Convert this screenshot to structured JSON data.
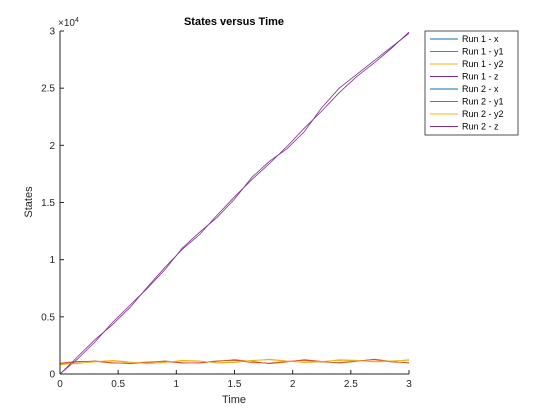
{
  "chart_data": {
    "type": "line",
    "title": "States versus Time",
    "xlabel": "Time",
    "ylabel": "States",
    "xlim": [
      0,
      3
    ],
    "ylim": [
      0,
      30000
    ],
    "xticks": [
      "0",
      "0.5",
      "1",
      "1.5",
      "2",
      "2.5",
      "3"
    ],
    "yticks": [
      "0",
      "0.5",
      "1",
      "1.5",
      "2",
      "2.5",
      "3"
    ],
    "exponent_label": "×10",
    "exponent_power": "4",
    "grid": false,
    "legend_position": "top-right outside",
    "x": [
      0,
      0.15,
      0.3,
      0.45,
      0.6,
      0.75,
      0.9,
      1.05,
      1.2,
      1.35,
      1.5,
      1.65,
      1.8,
      1.95,
      2.1,
      2.25,
      2.4,
      2.55,
      2.7,
      2.85,
      3.0
    ],
    "series": [
      {
        "name": "Run 1 - x",
        "color": "#0072BD",
        "values": [
          0,
          0,
          0,
          0,
          0,
          0,
          0,
          0,
          0,
          0,
          0,
          0,
          0,
          0,
          0,
          0,
          0,
          0,
          0,
          0,
          0
        ]
      },
      {
        "name": "Run 1 - y1",
        "color": "#D95319",
        "values": [
          900,
          1050,
          1150,
          1000,
          900,
          1000,
          1150,
          1000,
          950,
          1100,
          1250,
          1100,
          900,
          1050,
          1250,
          1100,
          950,
          1100,
          1300,
          1100,
          950
        ]
      },
      {
        "name": "Run 1 - y2",
        "color": "#EDB120",
        "values": [
          800,
          950,
          1050,
          1200,
          1050,
          900,
          1000,
          1200,
          1150,
          950,
          1000,
          1150,
          1300,
          1150,
          1000,
          1050,
          1250,
          1200,
          1050,
          1100,
          1250
        ]
      },
      {
        "name": "Run 1 - z",
        "color": "#7E2F8E",
        "values": [
          0,
          1300,
          2800,
          4500,
          6000,
          7500,
          9100,
          11000,
          12400,
          13700,
          15300,
          17200,
          18600,
          19700,
          21200,
          23300,
          25000,
          26200,
          27400,
          28600,
          29800
        ]
      },
      {
        "name": "Run 2 - x",
        "color": "#0072BD",
        "values": [
          0,
          0,
          0,
          0,
          0,
          0,
          0,
          0,
          0,
          0,
          0,
          0,
          0,
          0,
          0,
          0,
          0,
          0,
          0,
          0,
          0
        ]
      },
      {
        "name": "Run 2 - y1",
        "color": "#D95319",
        "values": [
          950,
          1100,
          1100,
          950,
          950,
          1050,
          1100,
          950,
          1000,
          1150,
          1200,
          1000,
          950,
          1100,
          1200,
          1050,
          1000,
          1150,
          1250,
          1050,
          1000
        ]
      },
      {
        "name": "Run 2 - y2",
        "color": "#EDB120",
        "values": [
          850,
          900,
          1100,
          1150,
          1000,
          950,
          1050,
          1150,
          1100,
          1000,
          1050,
          1200,
          1250,
          1100,
          1050,
          1100,
          1200,
          1150,
          1100,
          1150,
          1200
        ]
      },
      {
        "name": "Run 2 - z",
        "color": "#7E2F8E",
        "values": [
          0,
          1500,
          3000,
          4300,
          5800,
          7600,
          9300,
          10900,
          12200,
          13900,
          15500,
          17000,
          18400,
          19900,
          21500,
          23000,
          24600,
          26000,
          27200,
          28500,
          29900
        ]
      }
    ]
  }
}
